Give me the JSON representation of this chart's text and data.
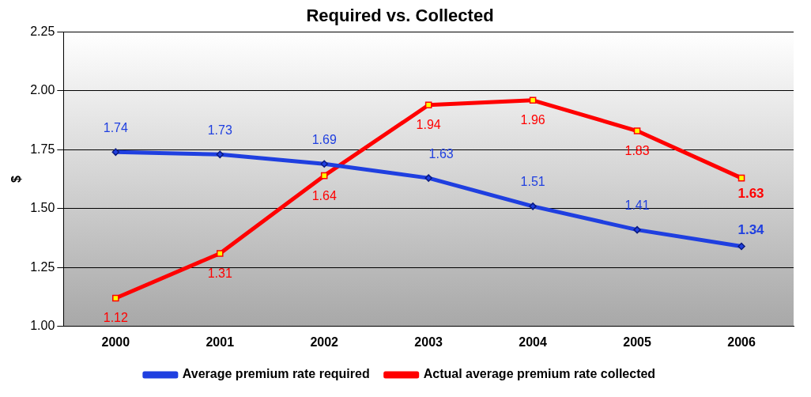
{
  "chart_data": {
    "type": "line",
    "title": "Required vs. Collected",
    "ylabel": "$",
    "categories": [
      "2000",
      "2001",
      "2002",
      "2003",
      "2004",
      "2005",
      "2006"
    ],
    "series": [
      {
        "name": "Average premium rate required",
        "color": "#1f3fe0",
        "marker": "diamond",
        "values": [
          1.74,
          1.73,
          1.69,
          1.63,
          1.51,
          1.41,
          1.34
        ]
      },
      {
        "name": "Actual average premium rate collected",
        "color": "#ff0000",
        "marker": "square",
        "values": [
          1.12,
          1.31,
          1.64,
          1.94,
          1.96,
          1.83,
          1.63
        ]
      }
    ],
    "ylim": [
      1,
      2.25
    ],
    "yticks": [
      {
        "value": 1,
        "label": "1.00"
      },
      {
        "value": 1.25,
        "label": "1.25"
      },
      {
        "value": 1.5,
        "label": "1.50"
      },
      {
        "value": 1.75,
        "label": "1.75"
      },
      {
        "value": 2,
        "label": "2.00"
      },
      {
        "value": 2.25,
        "label": "2.25"
      }
    ],
    "grid": "y",
    "legend": "bottom",
    "data_labels": true,
    "line_style": "solid"
  }
}
